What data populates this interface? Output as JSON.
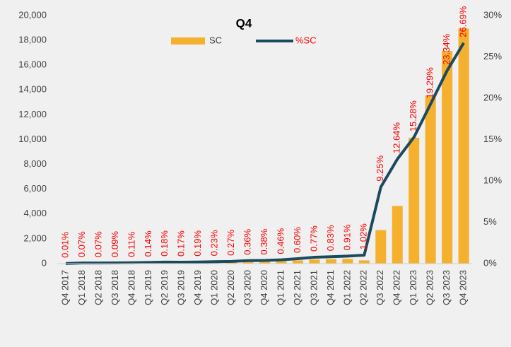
{
  "chart_data": {
    "type": "bar_line",
    "title": "Q4",
    "categories": [
      "Q4 2017",
      "Q1 2018",
      "Q2 2018",
      "Q3 2018",
      "Q4 2018",
      "Q1 2019",
      "Q2 2019",
      "Q3 2019",
      "Q4 2019",
      "Q1 2020",
      "Q2 2020",
      "Q3 2020",
      "Q4 2020",
      "Q1 2021",
      "Q2 2021",
      "Q3 2021",
      "Q4 2021",
      "Q1 2022",
      "Q2 2022",
      "Q3 2022",
      "Q4 2022",
      "Q1 2023",
      "Q2 2023",
      "Q3 2023",
      "Q4 2023"
    ],
    "series": [
      {
        "name": "SC",
        "type": "bar",
        "color": "#f5b02e",
        "values": [
          5,
          30,
          30,
          40,
          50,
          60,
          80,
          80,
          90,
          100,
          120,
          160,
          170,
          200,
          260,
          330,
          360,
          380,
          260,
          2700,
          4650,
          10150,
          13550,
          17150,
          18950
        ]
      },
      {
        "name": "%SC",
        "type": "line",
        "axis": "y2",
        "color": "#1b4a5e",
        "label_color": "#ff0000",
        "values": [
          0.01,
          0.07,
          0.07,
          0.09,
          0.11,
          0.14,
          0.18,
          0.17,
          0.19,
          0.23,
          0.27,
          0.36,
          0.38,
          0.46,
          0.6,
          0.77,
          0.83,
          0.91,
          1.02,
          9.25,
          12.64,
          15.28,
          19.29,
          23.34,
          26.69
        ],
        "value_labels": [
          "0.01%",
          "0.07%",
          "0.07%",
          "0.09%",
          "0.11%",
          "0.14%",
          "0.18%",
          "0.17%",
          "0.19%",
          "0.23%",
          "0.27%",
          "0.36%",
          "0.38%",
          "0.46%",
          "0.60%",
          "0.77%",
          "0.83%",
          "0.91%",
          "1.02%",
          "9.25%",
          "12.64%",
          "15.28%",
          "19.29%",
          "23.34%",
          "26.69%"
        ]
      }
    ],
    "ylim": [
      0,
      20000
    ],
    "yticks": [
      0,
      {
        "value": 2000,
        "label": "2,000"
      },
      {
        "value": 4000,
        "label": "4,000"
      },
      {
        "value": 6000,
        "label": "6,000"
      },
      {
        "value": 8000,
        "label": "8,000"
      },
      {
        "value": 10000,
        "label": "10,000"
      },
      {
        "value": 12000,
        "label": "12,000"
      },
      {
        "value": 14000,
        "label": "14,000"
      },
      {
        "value": 16000,
        "label": "16,000"
      },
      {
        "value": 18000,
        "label": "18,000"
      },
      {
        "value": 20000,
        "label": "20,000"
      }
    ],
    "y2lim": [
      0,
      30
    ],
    "y2ticks": [
      {
        "value": 0,
        "label": "0%"
      },
      {
        "value": 5,
        "label": "5%"
      },
      {
        "value": 10,
        "label": "10%"
      },
      {
        "value": 15,
        "label": "15%"
      },
      {
        "value": 20,
        "label": "20%"
      },
      {
        "value": 25,
        "label": "25%"
      },
      {
        "value": 30,
        "label": "30%"
      }
    ],
    "grid": false,
    "legend": "top"
  }
}
